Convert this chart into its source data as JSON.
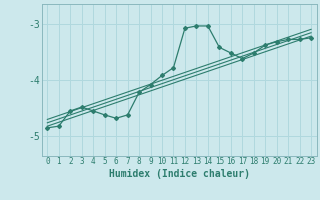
{
  "xlabel": "Humidex (Indice chaleur)",
  "bg_color": "#cce8ec",
  "grid_color": "#b0d8de",
  "line_color": "#2d7d6e",
  "spine_color": "#8ab8be",
  "xlim": [
    -0.5,
    23.5
  ],
  "ylim": [
    -5.35,
    -2.65
  ],
  "yticks": [
    -5,
    -4,
    -3
  ],
  "xticks": [
    0,
    1,
    2,
    3,
    4,
    5,
    6,
    7,
    8,
    9,
    10,
    11,
    12,
    13,
    14,
    15,
    16,
    17,
    18,
    19,
    20,
    21,
    22,
    23
  ],
  "main_x": [
    0,
    1,
    2,
    3,
    4,
    5,
    6,
    7,
    8,
    9,
    10,
    11,
    12,
    13,
    14,
    15,
    16,
    17,
    18,
    19,
    20,
    21,
    22,
    23
  ],
  "main_y": [
    -4.85,
    -4.82,
    -4.55,
    -4.48,
    -4.55,
    -4.62,
    -4.68,
    -4.62,
    -4.22,
    -4.08,
    -3.92,
    -3.78,
    -3.08,
    -3.04,
    -3.04,
    -3.42,
    -3.52,
    -3.62,
    -3.52,
    -3.38,
    -3.32,
    -3.28,
    -3.28,
    -3.25
  ],
  "reg_lines": [
    {
      "x": [
        0,
        23
      ],
      "y": [
        -4.82,
        -3.22
      ]
    },
    {
      "x": [
        0,
        23
      ],
      "y": [
        -4.76,
        -3.16
      ]
    },
    {
      "x": [
        0,
        23
      ],
      "y": [
        -4.7,
        -3.1
      ]
    }
  ]
}
